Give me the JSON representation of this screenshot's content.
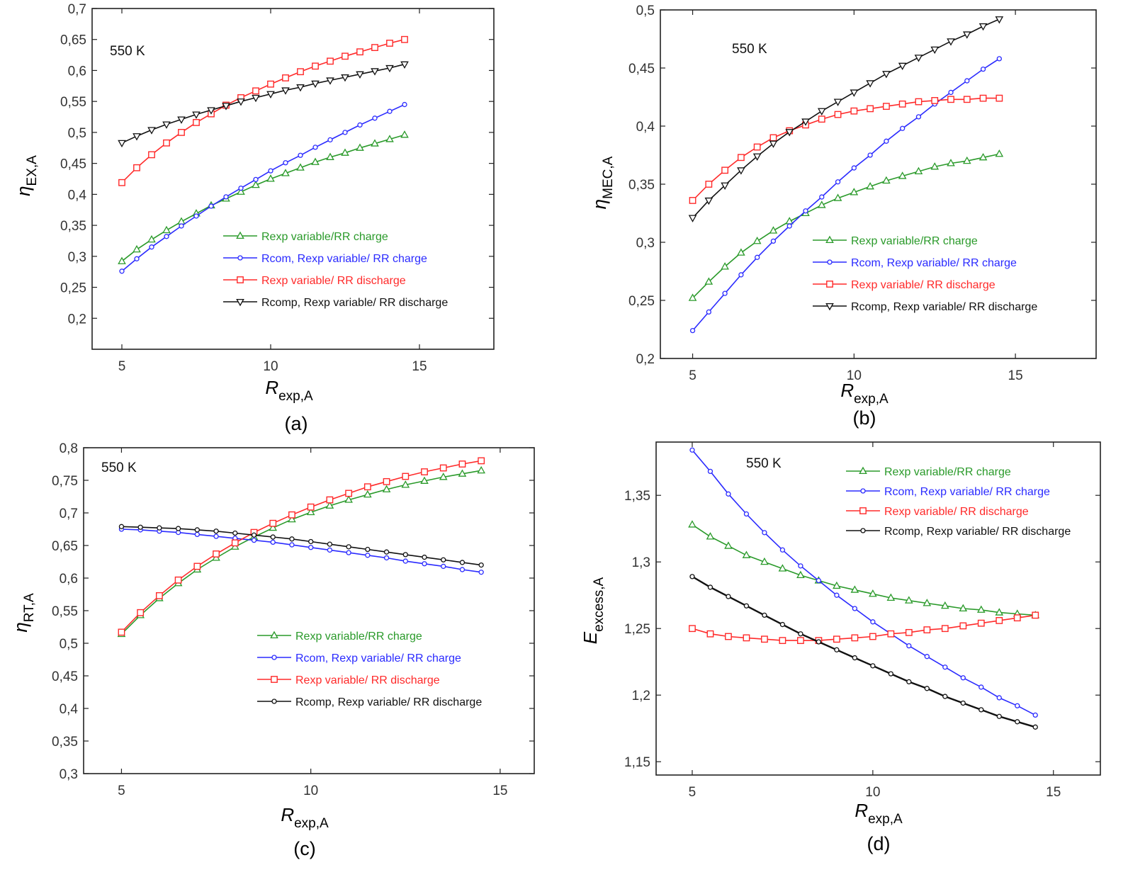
{
  "figure": {
    "panel_labels": [
      "(a)",
      "(b)",
      "(c)",
      "(d)"
    ]
  },
  "chart_data": [
    {
      "type": "line",
      "panel_label": "(a)",
      "annotation": "550 K",
      "xlabel_main": "R",
      "xlabel_sub": "exp,A",
      "ylabel_main": "η",
      "ylabel_sub": "EX,A",
      "xlim": [
        4,
        17.5
      ],
      "ylim": [
        0.15,
        0.7
      ],
      "xticks": [
        5,
        10,
        15
      ],
      "xtick_labels": [
        "5",
        "10",
        "15"
      ],
      "yticks": [
        0.2,
        0.25,
        0.3,
        0.35,
        0.4,
        0.45,
        0.5,
        0.55,
        0.6,
        0.65,
        0.7
      ],
      "ytick_labels": [
        "0,2",
        "0,25",
        "0,3",
        "0,35",
        "0,4",
        "0,45",
        "0,5",
        "0,55",
        "0,6",
        "0,65",
        "0,7"
      ],
      "x": [
        5,
        5.5,
        6,
        6.5,
        7,
        7.5,
        8,
        8.5,
        9,
        9.5,
        10,
        10.5,
        11,
        11.5,
        12,
        12.5,
        13,
        13.5,
        14,
        14.5
      ],
      "series": [
        {
          "name": "Rexp variable/RR charge",
          "color": "#2a9a2a",
          "marker": "triangle",
          "values": [
            0.292,
            0.311,
            0.327,
            0.342,
            0.356,
            0.369,
            0.382,
            0.393,
            0.404,
            0.415,
            0.425,
            0.434,
            0.443,
            0.452,
            0.46,
            0.467,
            0.475,
            0.482,
            0.489,
            0.496
          ]
        },
        {
          "name": "Rcom, Rexp variable/ RR charge",
          "color": "#2b2bff",
          "marker": "circle",
          "values": [
            0.276,
            0.296,
            0.315,
            0.332,
            0.349,
            0.365,
            0.381,
            0.396,
            0.41,
            0.424,
            0.438,
            0.451,
            0.463,
            0.476,
            0.488,
            0.5,
            0.512,
            0.523,
            0.534,
            0.545
          ]
        },
        {
          "name": "Rexp variable/ RR discharge",
          "color": "#ff2a2a",
          "marker": "square",
          "values": [
            0.419,
            0.443,
            0.464,
            0.483,
            0.5,
            0.516,
            0.53,
            0.544,
            0.556,
            0.567,
            0.578,
            0.588,
            0.598,
            0.607,
            0.615,
            0.623,
            0.63,
            0.637,
            0.644,
            0.65
          ]
        },
        {
          "name": "Rcomp, Rexp variable/ RR discharge",
          "color": "#111111",
          "marker": "triangle-down",
          "values": [
            0.483,
            0.494,
            0.504,
            0.513,
            0.521,
            0.529,
            0.536,
            0.543,
            0.55,
            0.556,
            0.562,
            0.568,
            0.573,
            0.579,
            0.584,
            0.589,
            0.594,
            0.599,
            0.604,
            0.61
          ]
        }
      ]
    },
    {
      "type": "line",
      "panel_label": "(b)",
      "annotation": "550 K",
      "xlabel_main": "R",
      "xlabel_sub": "exp,A",
      "ylabel_main": "η",
      "ylabel_sub": "MEC,A",
      "xlim": [
        4,
        17.5
      ],
      "ylim": [
        0.2,
        0.5
      ],
      "xticks": [
        5,
        10,
        15
      ],
      "xtick_labels": [
        "5",
        "10",
        "15"
      ],
      "yticks": [
        0.2,
        0.25,
        0.3,
        0.35,
        0.4,
        0.45,
        0.5
      ],
      "ytick_labels": [
        "0,2",
        "0,25",
        "0,3",
        "0,35",
        "0,4",
        "0,45",
        "0,5"
      ],
      "x": [
        5,
        5.5,
        6,
        6.5,
        7,
        7.5,
        8,
        8.5,
        9,
        9.5,
        10,
        10.5,
        11,
        11.5,
        12,
        12.5,
        13,
        13.5,
        14,
        14.5
      ],
      "series": [
        {
          "name": "Rexp variable/RR charge",
          "color": "#2a9a2a",
          "marker": "triangle",
          "values": [
            0.252,
            0.266,
            0.279,
            0.291,
            0.301,
            0.31,
            0.318,
            0.325,
            0.332,
            0.338,
            0.343,
            0.348,
            0.353,
            0.357,
            0.361,
            0.365,
            0.368,
            0.37,
            0.373,
            0.376
          ]
        },
        {
          "name": "Rcom, Rexp variable/ RR charge",
          "color": "#2b2bff",
          "marker": "circle",
          "values": [
            0.224,
            0.24,
            0.256,
            0.272,
            0.287,
            0.301,
            0.314,
            0.327,
            0.339,
            0.352,
            0.364,
            0.375,
            0.387,
            0.398,
            0.408,
            0.419,
            0.429,
            0.439,
            0.449,
            0.458
          ]
        },
        {
          "name": "Rexp variable/ RR discharge",
          "color": "#ff2a2a",
          "marker": "square",
          "values": [
            0.336,
            0.35,
            0.362,
            0.373,
            0.382,
            0.39,
            0.396,
            0.401,
            0.406,
            0.41,
            0.413,
            0.415,
            0.417,
            0.419,
            0.421,
            0.422,
            0.423,
            0.423,
            0.424,
            0.424
          ]
        },
        {
          "name": "Rcomp, Rexp variable/ RR discharge",
          "color": "#111111",
          "marker": "triangle-down",
          "values": [
            0.321,
            0.336,
            0.349,
            0.362,
            0.374,
            0.385,
            0.395,
            0.404,
            0.413,
            0.421,
            0.429,
            0.437,
            0.445,
            0.452,
            0.459,
            0.466,
            0.473,
            0.479,
            0.486,
            0.492
          ]
        }
      ]
    },
    {
      "type": "line",
      "panel_label": "(c)",
      "annotation": "550 K",
      "xlabel_main": "R",
      "xlabel_sub": "exp,A",
      "ylabel_main": "η",
      "ylabel_sub": "RT,A",
      "xlim": [
        4,
        15.9
      ],
      "ylim": [
        0.3,
        0.8
      ],
      "xticks": [
        5,
        10,
        15
      ],
      "xtick_labels": [
        "5",
        "10",
        "15"
      ],
      "yticks": [
        0.3,
        0.35,
        0.4,
        0.45,
        0.5,
        0.55,
        0.6,
        0.65,
        0.7,
        0.75,
        0.8
      ],
      "ytick_labels": [
        "0,3",
        "0,35",
        "0,4",
        "0,45",
        "0,5",
        "0,55",
        "0,6",
        "0,65",
        "0,7",
        "0,75",
        "0,8"
      ],
      "x": [
        5,
        5.5,
        6,
        6.5,
        7,
        7.5,
        8,
        8.5,
        9,
        9.5,
        10,
        10.5,
        11,
        11.5,
        12,
        12.5,
        13,
        13.5,
        14,
        14.5
      ],
      "series": [
        {
          "name": "Rexp variable/RR charge",
          "color": "#2a9a2a",
          "marker": "triangle",
          "values": [
            0.514,
            0.543,
            0.569,
            0.592,
            0.613,
            0.631,
            0.648,
            0.663,
            0.677,
            0.69,
            0.701,
            0.711,
            0.72,
            0.728,
            0.736,
            0.743,
            0.749,
            0.755,
            0.76,
            0.765
          ]
        },
        {
          "name": "Rcom, Rexp variable/ RR charge",
          "color": "#2b2bff",
          "marker": "circle",
          "values": [
            0.675,
            0.674,
            0.672,
            0.67,
            0.667,
            0.664,
            0.661,
            0.658,
            0.655,
            0.651,
            0.647,
            0.643,
            0.639,
            0.635,
            0.631,
            0.626,
            0.622,
            0.618,
            0.613,
            0.609
          ]
        },
        {
          "name": "Rexp variable/ RR discharge",
          "color": "#ff2a2a",
          "marker": "square",
          "values": [
            0.517,
            0.547,
            0.573,
            0.597,
            0.618,
            0.637,
            0.654,
            0.67,
            0.684,
            0.697,
            0.709,
            0.72,
            0.73,
            0.74,
            0.748,
            0.756,
            0.763,
            0.769,
            0.775,
            0.78
          ]
        },
        {
          "name": "Rcomp, Rexp variable/ RR discharge",
          "color": "#111111",
          "marker": "circle",
          "values": [
            0.679,
            0.678,
            0.677,
            0.676,
            0.674,
            0.672,
            0.669,
            0.666,
            0.663,
            0.66,
            0.656,
            0.652,
            0.648,
            0.644,
            0.64,
            0.636,
            0.632,
            0.628,
            0.624,
            0.62
          ]
        }
      ]
    },
    {
      "type": "line",
      "panel_label": "(d)",
      "annotation": "550 K",
      "xlabel_main": "R",
      "xlabel_sub": "exp,A",
      "ylabel_main": "E",
      "ylabel_sub": "excess,A",
      "xlim": [
        4,
        16.3
      ],
      "ylim": [
        1.14,
        1.39
      ],
      "xticks": [
        5,
        10,
        15
      ],
      "xtick_labels": [
        "5",
        "10",
        "15"
      ],
      "yticks": [
        1.15,
        1.2,
        1.25,
        1.3,
        1.35
      ],
      "ytick_labels": [
        "1,15",
        "1,2",
        "1,25",
        "1,3",
        "1,35"
      ],
      "x": [
        5,
        5.5,
        6,
        6.5,
        7,
        7.5,
        8,
        8.5,
        9,
        9.5,
        10,
        10.5,
        11,
        11.5,
        12,
        12.5,
        13,
        13.5,
        14,
        14.5
      ],
      "series": [
        {
          "name": "Rexp variable/RR charge",
          "color": "#2a9a2a",
          "marker": "triangle",
          "values": [
            1.328,
            1.319,
            1.312,
            1.305,
            1.3,
            1.295,
            1.29,
            1.286,
            1.282,
            1.279,
            1.276,
            1.273,
            1.271,
            1.269,
            1.267,
            1.265,
            1.264,
            1.262,
            1.261,
            1.26
          ]
        },
        {
          "name": "Rcom, Rexp variable/ RR charge",
          "color": "#2b2bff",
          "marker": "circle",
          "values": [
            1.384,
            1.368,
            1.351,
            1.336,
            1.322,
            1.309,
            1.297,
            1.286,
            1.275,
            1.265,
            1.255,
            1.246,
            1.237,
            1.229,
            1.221,
            1.213,
            1.206,
            1.198,
            1.192,
            1.185
          ]
        },
        {
          "name": "Rexp variable/ RR discharge",
          "color": "#ff2a2a",
          "marker": "square",
          "values": [
            1.25,
            1.246,
            1.244,
            1.243,
            1.242,
            1.241,
            1.241,
            1.241,
            1.242,
            1.243,
            1.244,
            1.246,
            1.247,
            1.249,
            1.25,
            1.252,
            1.254,
            1.256,
            1.258,
            1.26
          ]
        },
        {
          "name": "Rcomp, Rexp variable/ RR discharge",
          "color": "#111111",
          "marker": "circle",
          "values": [
            1.289,
            1.281,
            1.274,
            1.267,
            1.26,
            1.253,
            1.246,
            1.24,
            1.234,
            1.228,
            1.222,
            1.216,
            1.21,
            1.205,
            1.199,
            1.194,
            1.189,
            1.184,
            1.18,
            1.176
          ]
        }
      ]
    }
  ]
}
